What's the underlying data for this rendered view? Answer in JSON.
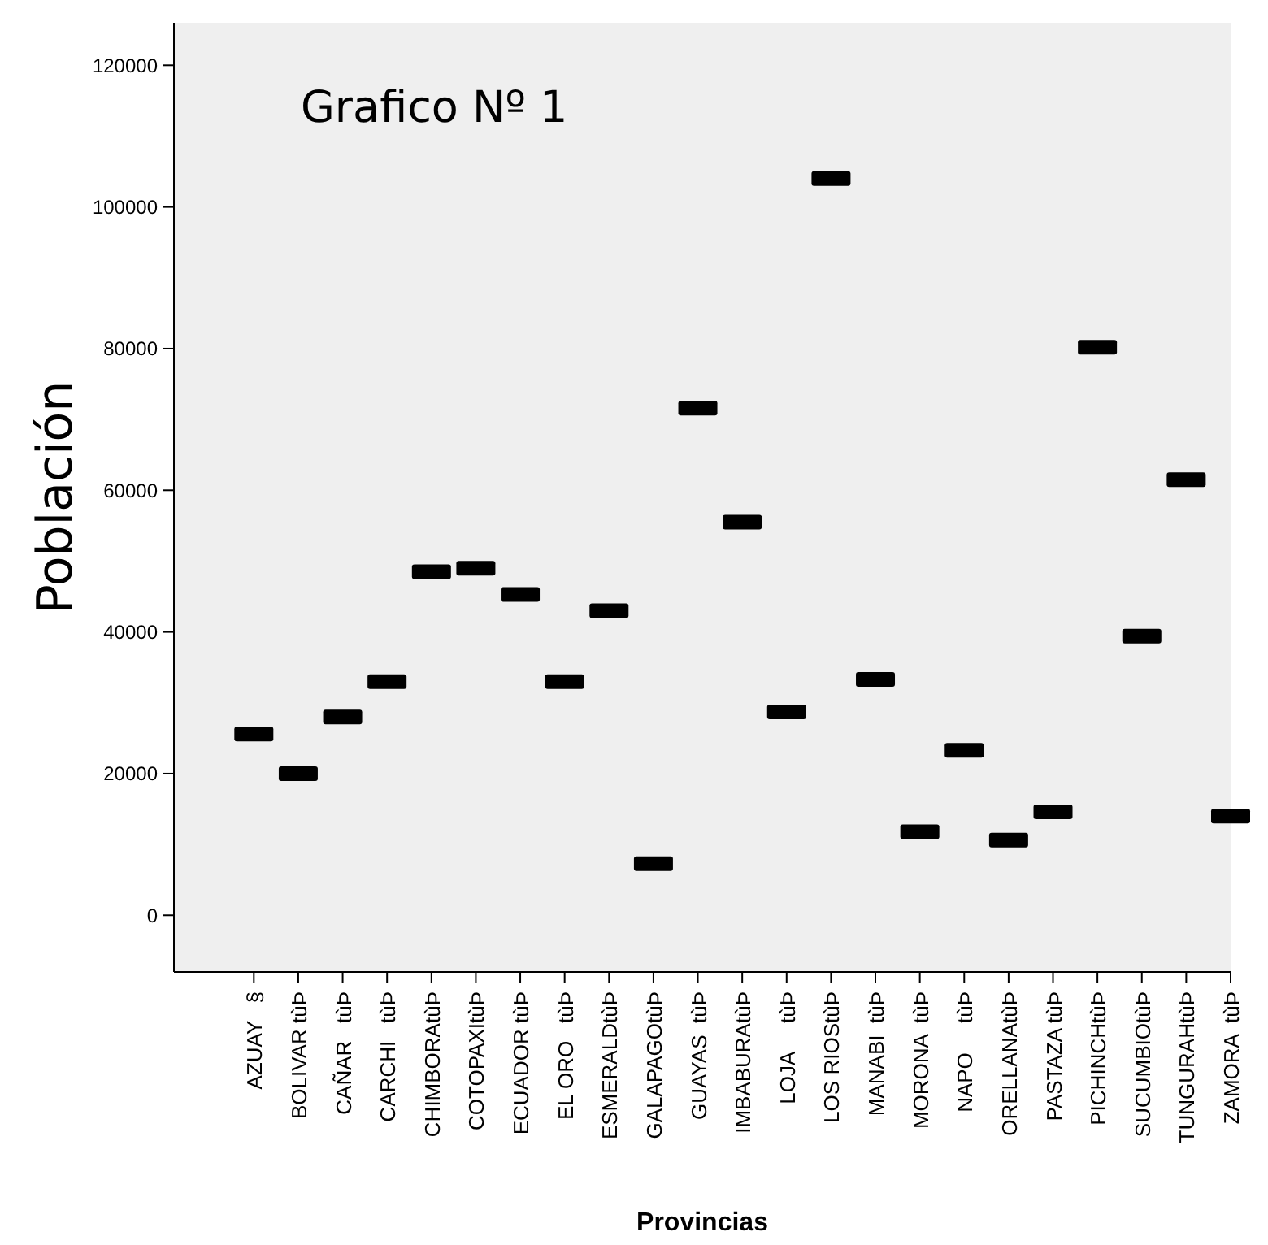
{
  "chart_data": {
    "type": "scatter",
    "title": "Grafico Nº 1",
    "xlabel": "Provincias",
    "ylabel": "Población",
    "categories": [
      "AZUAY   §",
      "BOLIVAR tùÞ",
      "CAÑAR   tùÞ",
      "CARCHI   tùÞ",
      "CHIMBORAtùÞ",
      "COTOPAXItùÞ",
      "ECUADOR tùÞ",
      "EL ORO   tùÞ",
      "ESMERALDtùÞ",
      "GALAPAGOtùÞ",
      "GUAYAS  tùÞ",
      "IMBABURAtùÞ",
      "LOJA     tùÞ",
      "LOS RIOStùÞ",
      "MANABI  tùÞ",
      "MORONA  tùÞ",
      "NAPO     tùÞ",
      "ORELLANAtùÞ",
      "PASTAZA tùÞ",
      "PICHINCHtùÞ",
      "SUCUMBIOtùÞ",
      "TUNGURAHtùÞ",
      "ZAMORA  tùÞ"
    ],
    "series": [
      {
        "color": "#000000",
        "values": [
          25600,
          20000,
          28000,
          33000,
          48500,
          49000,
          45300,
          33000,
          43000,
          7300,
          71600,
          55500,
          28700,
          104000,
          33300,
          11800,
          23300,
          10600,
          14600,
          80200,
          39400,
          61500,
          14000
        ]
      }
    ],
    "marker": "square",
    "grid": false,
    "ylim": [
      -8000,
      126000
    ],
    "yticks": [
      0,
      20000,
      40000,
      60000,
      80000,
      100000,
      120000
    ]
  }
}
